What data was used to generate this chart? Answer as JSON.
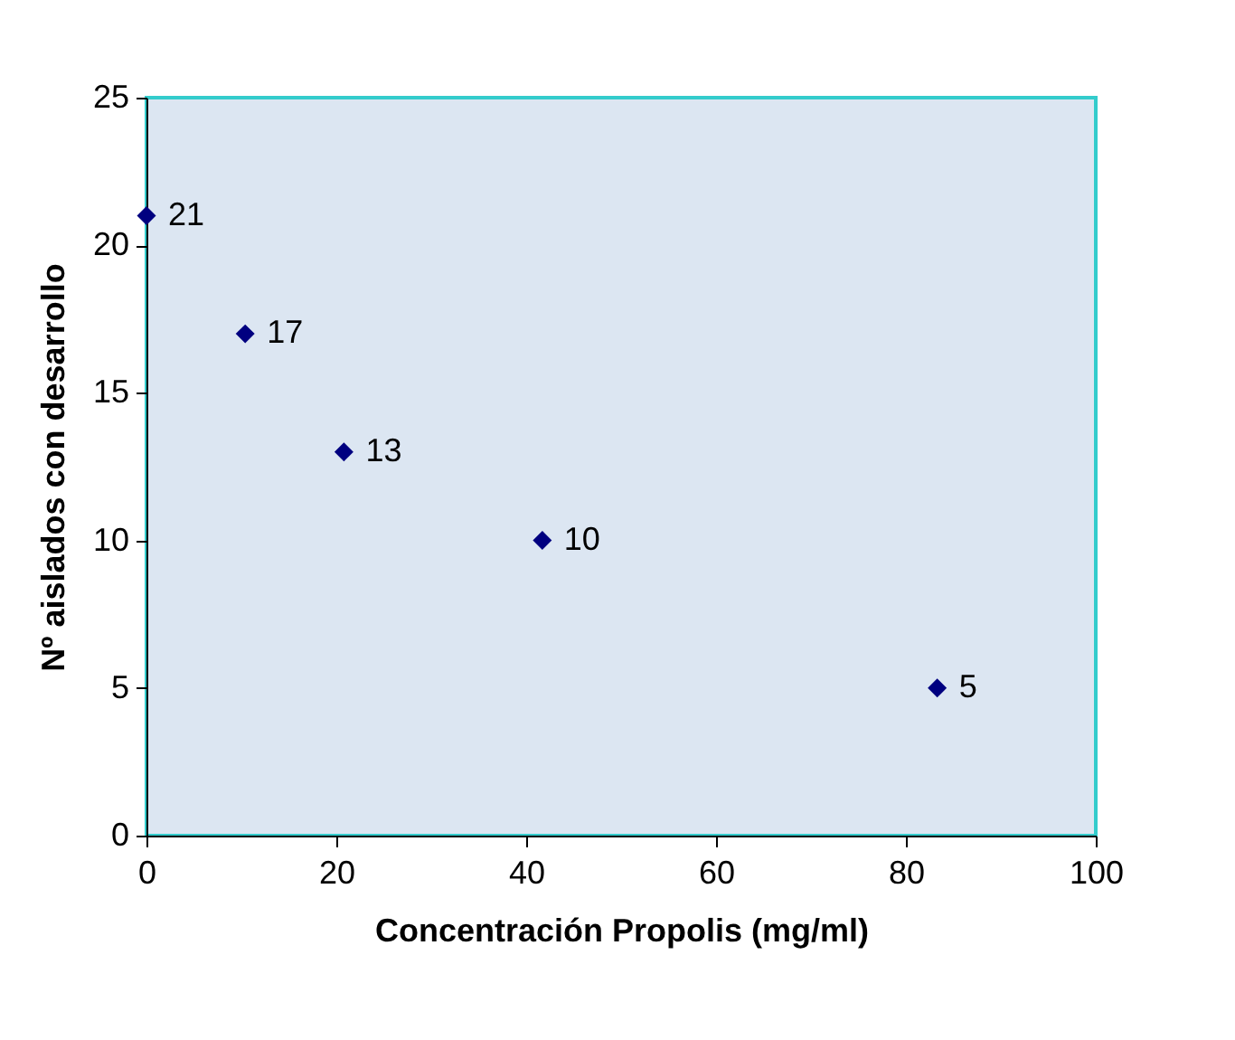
{
  "chart_data": {
    "type": "scatter",
    "xlabel": "Concentración Propolis (mg/ml)",
    "ylabel": "Nº aislados con desarrollo",
    "x": [
      0,
      10.4,
      20.8,
      41.7,
      83.3
    ],
    "series": [
      {
        "color": "#000080",
        "values": [
          21,
          17,
          13,
          10,
          5
        ]
      }
    ],
    "xlim": [
      0,
      100
    ],
    "xticks": [
      0,
      20,
      40,
      60,
      80,
      100
    ],
    "ylim": [
      0,
      25
    ],
    "yticks": [
      0,
      5,
      10,
      15,
      20,
      25
    ],
    "marker": "diamond",
    "data_labels": true,
    "grid": false
  }
}
